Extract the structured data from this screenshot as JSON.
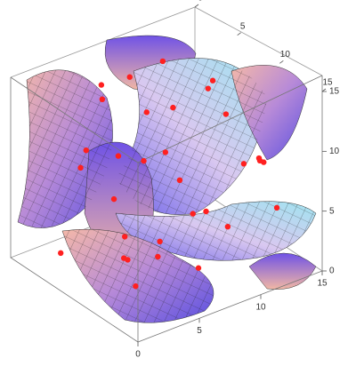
{
  "chart_data": {
    "type": "scatter3d",
    "xlim": [
      0,
      15
    ],
    "ylim": [
      0,
      15
    ],
    "zlim": [
      0,
      15
    ],
    "xticks": [
      0,
      5,
      10,
      15
    ],
    "yticks": [
      0,
      5,
      10,
      15
    ],
    "zticks": [
      0,
      5,
      10,
      15
    ],
    "series": [
      {
        "color": "#ff2020",
        "x": [
          0.5,
          1,
          1.5,
          3,
          4,
          2,
          5,
          6,
          7,
          8,
          9,
          10,
          11,
          12,
          13,
          14,
          10,
          9,
          8,
          6,
          5,
          12,
          13,
          11,
          7,
          4,
          3,
          14,
          12,
          9,
          2,
          6
        ],
        "y": [
          14,
          12,
          10,
          13,
          8,
          6,
          11,
          4,
          9,
          14,
          3,
          7,
          2,
          12,
          5,
          9,
          13,
          10,
          6,
          2,
          1,
          8,
          11,
          4,
          12,
          5,
          9,
          3,
          14,
          1,
          3,
          7
        ],
        "z": [
          4,
          7,
          9,
          5,
          2,
          11,
          12,
          8,
          14,
          6,
          10,
          3,
          13,
          9,
          12,
          7,
          10,
          5,
          1,
          13,
          6,
          11,
          8,
          4,
          2,
          14,
          3,
          10,
          6,
          12,
          1,
          9
        ]
      }
    ]
  }
}
